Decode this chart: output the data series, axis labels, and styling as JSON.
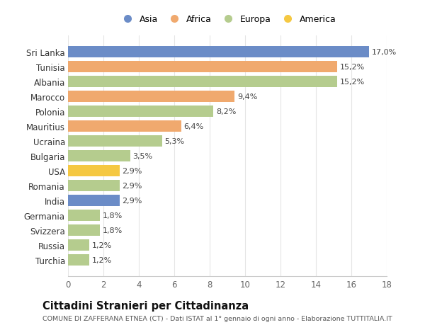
{
  "categories": [
    "Sri Lanka",
    "Tunisia",
    "Albania",
    "Marocco",
    "Polonia",
    "Mauritius",
    "Ucraina",
    "Bulgaria",
    "USA",
    "Romania",
    "India",
    "Germania",
    "Svizzera",
    "Russia",
    "Turchia"
  ],
  "values": [
    17.0,
    15.2,
    15.2,
    9.4,
    8.2,
    6.4,
    5.3,
    3.5,
    2.9,
    2.9,
    2.9,
    1.8,
    1.8,
    1.2,
    1.2
  ],
  "labels": [
    "17,0%",
    "15,2%",
    "15,2%",
    "9,4%",
    "8,2%",
    "6,4%",
    "5,3%",
    "3,5%",
    "2,9%",
    "2,9%",
    "2,9%",
    "1,8%",
    "1,8%",
    "1,2%",
    "1,2%"
  ],
  "colors": [
    "#6b8cc7",
    "#f0a96e",
    "#b5cc8e",
    "#f0a96e",
    "#b5cc8e",
    "#f0a96e",
    "#b5cc8e",
    "#b5cc8e",
    "#f5c842",
    "#b5cc8e",
    "#6b8cc7",
    "#b5cc8e",
    "#b5cc8e",
    "#b5cc8e",
    "#b5cc8e"
  ],
  "legend_labels": [
    "Asia",
    "Africa",
    "Europa",
    "America"
  ],
  "legend_colors": [
    "#6b8cc7",
    "#f0a96e",
    "#b5cc8e",
    "#f5c842"
  ],
  "title": "Cittadini Stranieri per Cittadinanza",
  "subtitle": "COMUNE DI ZAFFERANA ETNEA (CT) - Dati ISTAT al 1° gennaio di ogni anno - Elaborazione TUTTITALIA.IT",
  "xlim": [
    0,
    18
  ],
  "xticks": [
    0,
    2,
    4,
    6,
    8,
    10,
    12,
    14,
    16,
    18
  ],
  "background_color": "#ffffff",
  "grid_color": "#e5e5e5"
}
